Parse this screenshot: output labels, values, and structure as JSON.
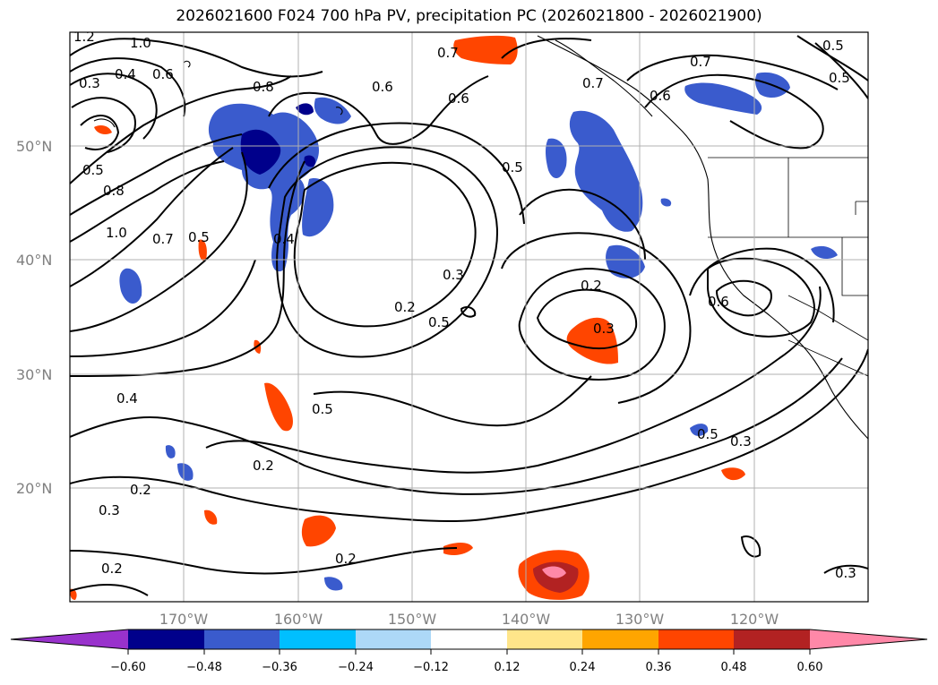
{
  "title": "2026021600 F024 700 hPa PV, precipitation PC (2026021800 - 2026021900)",
  "latitude_labels": [
    "50°N",
    "40°N",
    "30°N",
    "20°N"
  ],
  "longitude_labels": [
    "170°W",
    "160°W",
    "150°W",
    "140°W",
    "130°W",
    "120°W"
  ],
  "colorbar": {
    "tick_labels": [
      "−0.60",
      "−0.48",
      "−0.36",
      "−0.24",
      "−0.12",
      "0.12",
      "0.24",
      "0.36",
      "0.48",
      "0.60"
    ],
    "colors": [
      "#9932cc",
      "#00008b",
      "#3a5bcd",
      "#00bfff",
      "#add8f7",
      "#ffffff",
      "#ffe58a",
      "#ffa500",
      "#ff4500",
      "#b22222",
      "#ff88a8"
    ]
  },
  "contour_labels": [
    "1.2",
    "1.0",
    "0.3",
    "0.4",
    "0.6",
    "0.5",
    "0.8",
    "1.0",
    "0.7",
    "0.5",
    "0.4",
    "0.8",
    "0.6",
    "0.7",
    "0.6",
    "0.5",
    "0.7",
    "0.6",
    "0.7",
    "0.5",
    "0.5",
    "0.2",
    "0.3",
    "0.5",
    "0.2",
    "0.3",
    "0.6",
    "0.4",
    "0.5",
    "0.5",
    "0.3",
    "0.2",
    "0.2",
    "0.3",
    "0.2",
    "0.2",
    "0.3"
  ]
}
